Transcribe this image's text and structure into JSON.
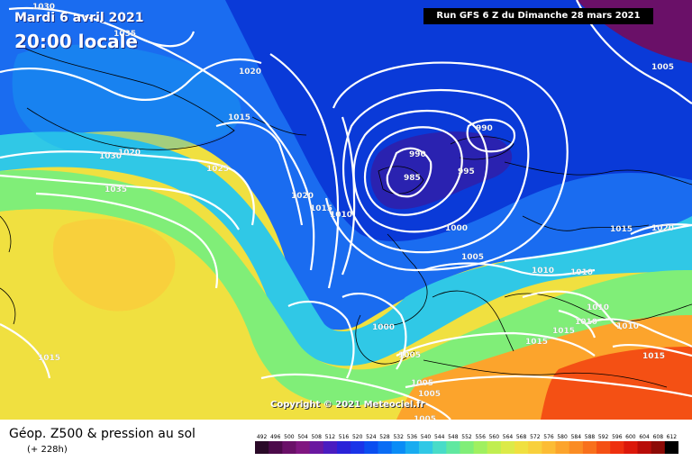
{
  "header": {
    "date": "Mardi 6 avril 2021",
    "time": "20:00 locale",
    "run": "Run GFS 6 Z du Dimanche 28 mars 2021"
  },
  "copyright": "Copyright © 2021 Meteociel.fr",
  "footer": {
    "title": "Géop. Z500 & pression au sol",
    "subtitle": "(+ 228h)"
  },
  "scale": {
    "labels": [
      "492",
      "496",
      "500",
      "504",
      "508",
      "512",
      "516",
      "520",
      "524",
      "528",
      "532",
      "536",
      "540",
      "544",
      "548",
      "552",
      "556",
      "560",
      "564",
      "568",
      "572",
      "576",
      "580",
      "584",
      "588",
      "592",
      "596",
      "600",
      "604",
      "608",
      "612"
    ],
    "colors": [
      "#2a0a28",
      "#4c0a4a",
      "#6a1068",
      "#801680",
      "#6a18a0",
      "#4a1cc0",
      "#2a22d8",
      "#1a34e8",
      "#0a4ef0",
      "#0a6cf4",
      "#0a8cf6",
      "#18acf0",
      "#30c8e6",
      "#48dcc8",
      "#60e8a0",
      "#80ee78",
      "#a0f060",
      "#c0ee50",
      "#dcea48",
      "#f0e040",
      "#f8d03c",
      "#fcbc34",
      "#fca42c",
      "#fa8c24",
      "#f8701c",
      "#f45014",
      "#ee300e",
      "#dc180a",
      "#b80c08",
      "#8c0a06",
      "#000000"
    ]
  },
  "labels": {
    "isobars": [
      {
        "text": "1030"
      },
      {
        "text": "1035"
      },
      {
        "text": "1020"
      },
      {
        "text": "1015"
      },
      {
        "text": "1030"
      },
      {
        "text": "1020"
      },
      {
        "text": "1025"
      },
      {
        "text": "1035"
      },
      {
        "text": "1020"
      },
      {
        "text": "1015"
      },
      {
        "text": "1010"
      },
      {
        "text": "1015"
      },
      {
        "text": "990"
      },
      {
        "text": "985"
      },
      {
        "text": "990"
      },
      {
        "text": "995"
      },
      {
        "text": "1000"
      },
      {
        "text": "1005"
      },
      {
        "text": "1000"
      },
      {
        "text": "1005"
      },
      {
        "text": "1010"
      },
      {
        "text": "1010"
      },
      {
        "text": "1015"
      },
      {
        "text": "1020"
      },
      {
        "text": "1005"
      },
      {
        "text": "1010"
      },
      {
        "text": "1010"
      },
      {
        "text": "1010"
      },
      {
        "text": "1015"
      },
      {
        "text": "1015"
      },
      {
        "text": "1015"
      },
      {
        "text": "1005"
      },
      {
        "text": "1005"
      },
      {
        "text": "1005"
      }
    ]
  }
}
